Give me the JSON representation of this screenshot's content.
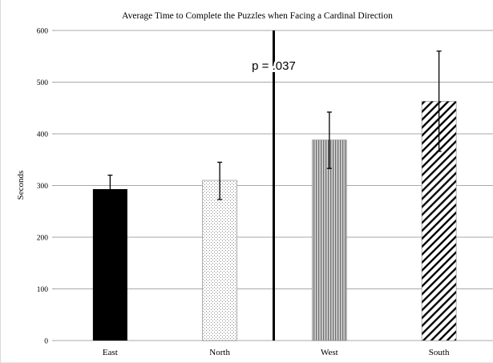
{
  "chart_data": {
    "type": "bar",
    "title": "Average Time to Complete the Puzzles when Facing a Cardinal Direction",
    "xlabel": "",
    "ylabel": "Seconds",
    "categories": [
      "East",
      "North",
      "West",
      "South"
    ],
    "values": [
      293,
      310,
      388,
      463
    ],
    "error_bars": [
      {
        "low": 268,
        "high": 320
      },
      {
        "low": 273,
        "high": 345
      },
      {
        "low": 333,
        "high": 442
      },
      {
        "low": 366,
        "high": 560
      }
    ],
    "fill_patterns": [
      "solid-black",
      "fine-dots",
      "vertical-stripes",
      "diagonal-hatch"
    ],
    "ylim": [
      0,
      600
    ],
    "yticks": [
      0,
      100,
      200,
      300,
      400,
      500,
      600
    ],
    "grid": true,
    "legend": "none",
    "annotation": {
      "text": "p = .037",
      "divider_between": [
        "North",
        "West"
      ]
    },
    "colors": {
      "bar_dark": "#000000",
      "bar_stroke": "#7f7f7f",
      "grid": "#8c8c8c",
      "divider": "#000000"
    }
  }
}
